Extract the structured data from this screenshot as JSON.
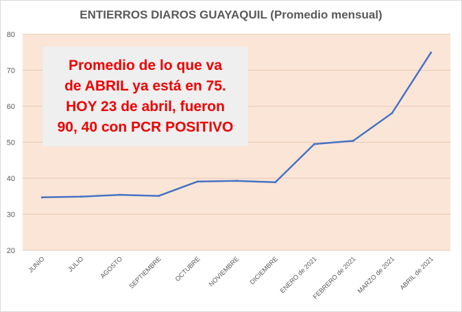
{
  "chart_data": {
    "type": "line",
    "title": "ENTIERROS DIAROS GUAYAQUIL  (Promedio mensual)",
    "categories": [
      "JUNIO",
      "JULIO",
      "AGOSTO",
      "SEPTIEMBRE",
      "OCTUBRE",
      "NOVIEMBRE",
      "DICIEMBRE",
      "ENERO de 2021",
      "FEBRERO de 2021",
      "MARZO de 2021",
      "ABRIL de 2021"
    ],
    "series": [
      {
        "values": [
          34.7,
          34.9,
          35.4,
          35.1,
          39.1,
          39.3,
          38.9,
          49.5,
          50.4,
          58.1,
          74.9
        ]
      }
    ],
    "ylim": [
      20,
      80
    ],
    "yticks": [
      20,
      30,
      40,
      50,
      60,
      70,
      80
    ],
    "grid": true,
    "colors": {
      "line": "#4472c4",
      "plot_bg": "#fbe5d6",
      "grid": "#e7c8b4"
    },
    "annotation": "Promedio de lo que va\nde ABRIL ya está en 75.\nHOY 23 de abril, fueron\n90, 40 con PCR POSITIVO"
  }
}
